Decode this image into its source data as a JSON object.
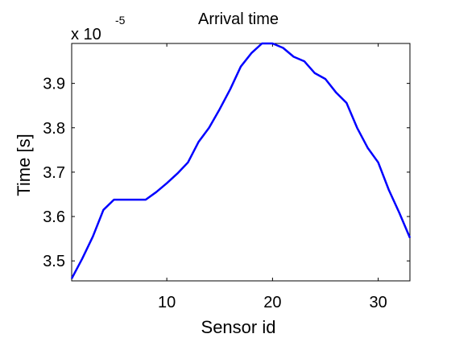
{
  "chart_data": {
    "type": "line",
    "title": "Arrival time",
    "xlabel": "Sensor id",
    "ylabel": "Time [s]",
    "y_multiplier": {
      "base": "x 10",
      "exponent": "-5"
    },
    "xlim": [
      1,
      33
    ],
    "ylim": [
      3.455,
      3.99
    ],
    "xticks": [
      10,
      20,
      30
    ],
    "yticks": [
      3.5,
      3.6,
      3.7,
      3.8,
      3.9
    ],
    "ytick_labels": [
      "3.5",
      "3.6",
      "3.7",
      "3.8",
      "3.9"
    ],
    "xtick_labels": [
      "10",
      "20",
      "30"
    ],
    "grid": false,
    "series": [
      {
        "color": "#0000ff",
        "x": [
          1,
          2,
          3,
          4,
          5,
          6,
          7,
          8,
          9,
          10,
          11,
          12,
          13,
          14,
          15,
          16,
          17,
          18,
          19,
          20,
          21,
          22,
          23,
          24,
          25,
          26,
          27,
          28,
          29,
          30,
          31,
          32,
          33
        ],
        "y": [
          3.46,
          3.505,
          3.555,
          3.615,
          3.638,
          3.638,
          3.638,
          3.638,
          3.655,
          3.675,
          3.697,
          3.722,
          3.768,
          3.8,
          3.842,
          3.887,
          3.938,
          3.968,
          3.99,
          3.99,
          3.98,
          3.96,
          3.95,
          3.923,
          3.91,
          3.88,
          3.856,
          3.8,
          3.755,
          3.722,
          3.66,
          3.608,
          3.552
        ]
      }
    ]
  }
}
